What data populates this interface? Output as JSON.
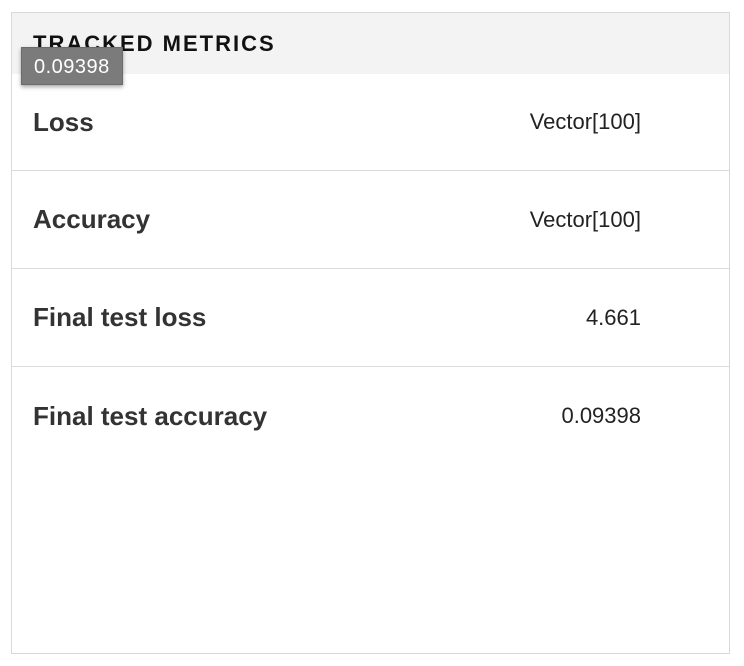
{
  "panel": {
    "title": "TRACKED METRICS"
  },
  "tooltip": {
    "text": "0.09398"
  },
  "metrics": [
    {
      "name": "Loss",
      "value": "Vector[100]"
    },
    {
      "name": "Accuracy",
      "value": "Vector[100]"
    },
    {
      "name": "Final test loss",
      "value": "4.661"
    },
    {
      "name": "Final test accuracy",
      "value": "0.09398"
    }
  ]
}
